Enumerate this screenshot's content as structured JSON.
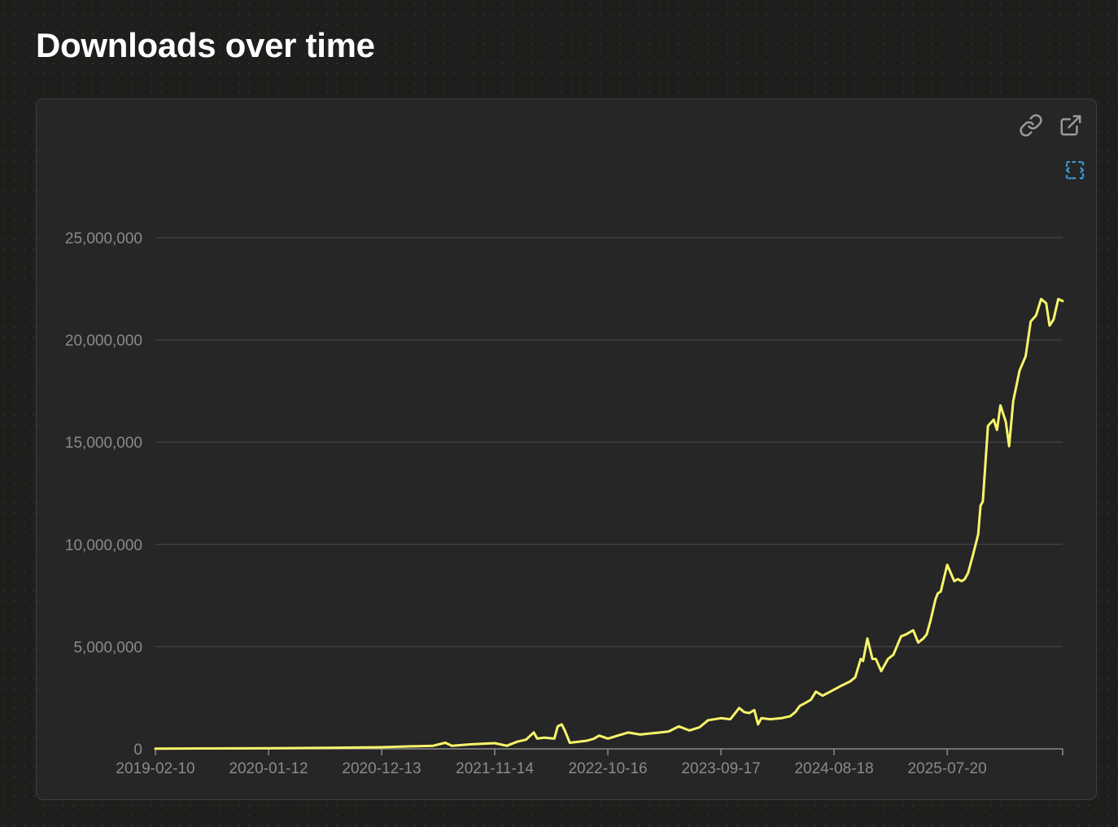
{
  "page": {
    "title": "Downloads over time"
  },
  "toolbar": {
    "icons": [
      "link-icon",
      "external-link-icon",
      "fullscreen-icon"
    ]
  },
  "colors": {
    "line": "#f7f56a",
    "grid": "#3f3f3f",
    "axis_text": "#8a8a8a",
    "card_bg": "#262626",
    "fullscreen_icon": "#3d9cd6"
  },
  "chart_data": {
    "type": "line",
    "title": "",
    "xlabel": "",
    "ylabel": "",
    "ylim": [
      0,
      25000000
    ],
    "yticks": [
      0,
      5000000,
      10000000,
      15000000,
      20000000,
      25000000
    ],
    "ytick_labels": [
      "0",
      "5,000,000",
      "10,000,000",
      "15,000,000",
      "20,000,000",
      "25,000,000"
    ],
    "xlim": [
      "2019-02-10",
      "2026-06-28"
    ],
    "xticks": [
      "2019-02-10",
      "2020-01-12",
      "2020-12-13",
      "2021-11-14",
      "2022-10-16",
      "2023-09-17",
      "2024-08-18",
      "2025-07-20"
    ],
    "grid": true,
    "legend": "none",
    "series": [
      {
        "x": [
          "2019-02-10",
          "2019-07-01",
          "2020-01-12",
          "2020-07-01",
          "2020-12-13",
          "2021-03-01",
          "2021-05-15",
          "2021-06-20",
          "2021-07-10",
          "2021-09-01",
          "2021-11-14",
          "2021-12-20",
          "2022-01-20",
          "2022-02-15",
          "2022-03-10",
          "2022-03-20",
          "2022-04-10",
          "2022-05-10",
          "2022-05-20",
          "2022-06-01",
          "2022-06-10",
          "2022-06-25",
          "2022-08-15",
          "2022-09-05",
          "2022-09-20",
          "2022-10-16",
          "2022-12-15",
          "2023-01-20",
          "2023-02-15",
          "2023-03-20",
          "2023-04-15",
          "2023-05-15",
          "2023-06-15",
          "2023-07-15",
          "2023-08-10",
          "2023-09-17",
          "2023-10-15",
          "2023-11-10",
          "2023-11-25",
          "2023-12-10",
          "2023-12-25",
          "2024-01-05",
          "2024-01-15",
          "2024-02-10",
          "2024-03-15",
          "2024-04-10",
          "2024-04-25",
          "2024-05-08",
          "2024-05-20",
          "2024-06-10",
          "2024-06-25",
          "2024-07-15",
          "2024-08-18",
          "2024-09-10",
          "2024-10-05",
          "2024-10-20",
          "2024-11-05",
          "2024-11-12",
          "2024-11-25",
          "2024-12-10",
          "2024-12-20",
          "2025-01-05",
          "2025-01-25",
          "2025-02-10",
          "2025-03-05",
          "2025-03-20",
          "2025-04-10",
          "2025-04-25",
          "2025-05-10",
          "2025-05-20",
          "2025-06-01",
          "2025-06-15",
          "2025-06-22",
          "2025-07-01",
          "2025-07-20",
          "2025-08-10",
          "2025-08-20",
          "2025-09-01",
          "2025-09-10",
          "2025-09-20",
          "2025-10-05",
          "2025-10-20",
          "2025-10-27",
          "2025-11-03",
          "2025-11-18",
          "2025-12-05",
          "2025-12-15",
          "2025-12-25",
          "2026-01-10",
          "2026-01-20",
          "2026-02-01",
          "2026-02-20",
          "2026-03-10",
          "2026-03-25",
          "2026-04-10",
          "2026-04-25",
          "2026-05-10",
          "2026-05-20",
          "2026-06-01",
          "2026-06-15",
          "2026-06-28"
        ],
        "y": [
          10000,
          20000,
          30000,
          50000,
          80000,
          120000,
          150000,
          300000,
          150000,
          220000,
          280000,
          150000,
          350000,
          450000,
          800000,
          500000,
          550000,
          500000,
          1100000,
          1200000,
          900000,
          300000,
          400000,
          500000,
          650000,
          500000,
          800000,
          700000,
          750000,
          800000,
          850000,
          1100000,
          900000,
          1050000,
          1400000,
          1500000,
          1450000,
          2000000,
          1800000,
          1750000,
          1900000,
          1200000,
          1500000,
          1450000,
          1500000,
          1600000,
          1800000,
          2100000,
          2200000,
          2400000,
          2800000,
          2600000,
          2900000,
          3100000,
          3300000,
          3500000,
          4400000,
          4300000,
          5400000,
          4400000,
          4400000,
          3800000,
          4400000,
          4600000,
          5500000,
          5600000,
          5800000,
          5200000,
          5400000,
          5600000,
          6300000,
          7300000,
          7600000,
          7700000,
          9000000,
          8200000,
          8300000,
          8200000,
          8300000,
          8600000,
          9500000,
          10500000,
          11900000,
          12100000,
          15800000,
          16100000,
          15600000,
          16800000,
          16000000,
          14800000,
          17000000,
          18500000,
          19200000,
          20900000,
          21200000,
          22000000,
          21800000,
          20700000,
          21000000,
          22000000,
          21900000
        ]
      }
    ]
  }
}
